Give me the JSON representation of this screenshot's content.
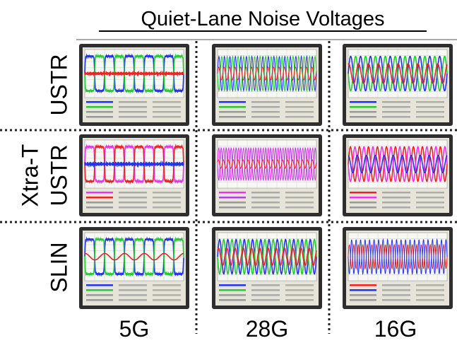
{
  "title": "Quiet-Lane Noise Voltages",
  "group_label": "Xtra-T",
  "row_labels": [
    "USTR",
    "USTR",
    "SLIN"
  ],
  "column_labels": [
    "5G",
    "28G",
    "16G"
  ]
}
